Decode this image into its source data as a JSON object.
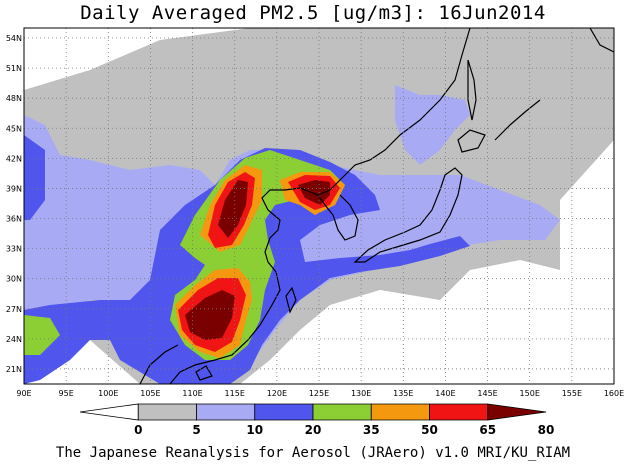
{
  "title": "Daily Averaged PM2.5 [ug/m3]: 16Jun2014",
  "credit": "The Japanese Reanalysis for Aerosol (JRAero) v1.0 MRI/KU_RIAM",
  "map": {
    "lon_range": [
      90,
      160
    ],
    "lat_range": [
      19.5,
      55
    ],
    "lat_ticks": [
      "54N",
      "51N",
      "48N",
      "45N",
      "42N",
      "39N",
      "36N",
      "33N",
      "30N",
      "27N",
      "24N",
      "21N"
    ],
    "lon_ticks": [
      "90E",
      "95E",
      "100E",
      "105E",
      "110E",
      "115E",
      "120E",
      "125E",
      "130E",
      "135E",
      "140E",
      "145E",
      "150E",
      "155E",
      "160E"
    ],
    "grid": true
  },
  "legend": {
    "labels": [
      "0",
      "5",
      "10",
      "20",
      "35",
      "50",
      "65",
      "80"
    ],
    "colors": [
      "#ffffff",
      "#c0c0c0",
      "#a8abf4",
      "#5055ee",
      "#8ccf34",
      "#f4990f",
      "#f01414",
      "#7a0000"
    ]
  }
}
